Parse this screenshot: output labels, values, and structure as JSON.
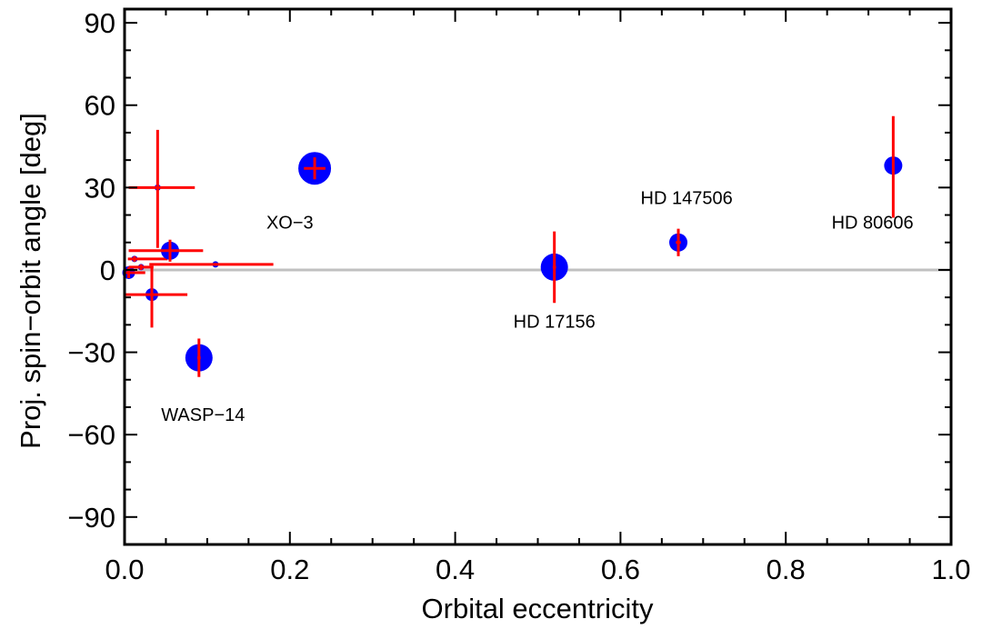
{
  "chart_data": {
    "type": "scatter",
    "title": "",
    "xlabel": "Orbital eccentricity",
    "ylabel": "Proj. spin−orbit angle [deg]",
    "xlim": [
      0.0,
      1.0
    ],
    "ylim": [
      -100,
      95
    ],
    "x_ticks": [
      {
        "value": 0.0,
        "label": "0.0"
      },
      {
        "value": 0.2,
        "label": "0.2"
      },
      {
        "value": 0.4,
        "label": "0.4"
      },
      {
        "value": 0.6,
        "label": "0.6"
      },
      {
        "value": 0.8,
        "label": "0.8"
      },
      {
        "value": 1.0,
        "label": "1.0"
      }
    ],
    "y_ticks": [
      {
        "value": 90,
        "label": "90"
      },
      {
        "value": 60,
        "label": "60"
      },
      {
        "value": 30,
        "label": "30"
      },
      {
        "value": 0,
        "label": "0"
      },
      {
        "value": -30,
        "label": "−30"
      },
      {
        "value": -60,
        "label": "−60"
      },
      {
        "value": -90,
        "label": "−90"
      }
    ],
    "reference_line": {
      "y": 0,
      "color": "#c0c0c0"
    },
    "grid": false,
    "colors": {
      "marker": "#0000ff",
      "error_bar": "#ff0000",
      "axes": "#000000"
    },
    "points": [
      {
        "x": 0.005,
        "y": -1,
        "size": "small",
        "xerr": [
          0.005,
          0.02
        ],
        "yerr": [
          2,
          2
        ]
      },
      {
        "x": 0.012,
        "y": 4,
        "size": "tiny",
        "xerr": [
          0.008,
          0.04
        ],
        "yerr": [
          1,
          1
        ]
      },
      {
        "x": 0.02,
        "y": 1,
        "size": "tiny",
        "xerr": [
          0.015,
          0.015
        ],
        "yerr": [
          1,
          1
        ]
      },
      {
        "x": 0.033,
        "y": -9,
        "size": "small",
        "xerr": [
          0.033,
          0.043
        ],
        "yerr": [
          12,
          10
        ]
      },
      {
        "x": 0.04,
        "y": 30,
        "size": "tiny",
        "xerr": [
          0.035,
          0.045
        ],
        "yerr": [
          22,
          21
        ]
      },
      {
        "x": 0.055,
        "y": 7,
        "size": "medium",
        "xerr": [
          0.05,
          0.04
        ],
        "yerr": [
          4,
          4
        ]
      },
      {
        "x": 0.09,
        "y": -32,
        "size": "large",
        "xerr": [
          0.002,
          0.002
        ],
        "yerr": [
          7,
          7
        ]
      },
      {
        "x": 0.11,
        "y": 2,
        "size": "tiny",
        "xerr": [
          0.08,
          0.07
        ],
        "yerr": [
          0.5,
          0.5
        ]
      },
      {
        "x": 0.23,
        "y": 37,
        "size": "xlarge",
        "xerr": [
          0.013,
          0.013
        ],
        "yerr": [
          4,
          4
        ]
      },
      {
        "x": 0.52,
        "y": 1,
        "size": "large",
        "xerr": [
          0.002,
          0.002
        ],
        "yerr": [
          13,
          13
        ]
      },
      {
        "x": 0.67,
        "y": 10,
        "size": "medium",
        "xerr": [
          0.003,
          0.003
        ],
        "yerr": [
          5,
          5
        ]
      },
      {
        "x": 0.93,
        "y": 38,
        "size": "medium",
        "xerr": [
          0.001,
          0.001
        ],
        "yerr": [
          19,
          18
        ]
      }
    ],
    "annotations": [
      {
        "text": "WASP−14",
        "x": 0.095,
        "y": -55
      },
      {
        "text": "XO−3",
        "x": 0.2,
        "y": 15
      },
      {
        "text": "HD 17156",
        "x": 0.52,
        "y": -21
      },
      {
        "text": "HD 147506",
        "x": 0.68,
        "y": 24
      },
      {
        "text": "HD 80606",
        "x": 0.905,
        "y": 15
      }
    ]
  }
}
